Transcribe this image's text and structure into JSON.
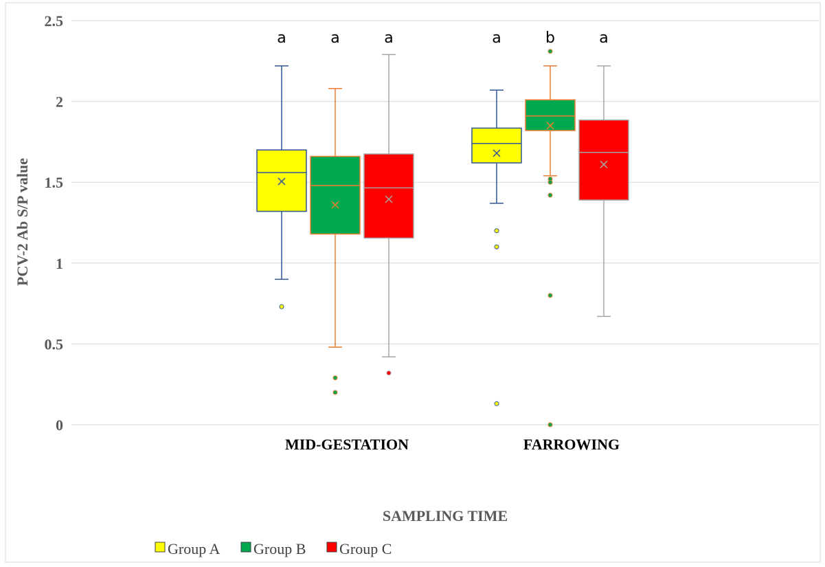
{
  "chart_data": {
    "type": "box",
    "title": "",
    "xlabel": "SAMPLING TIME",
    "ylabel": "PCV-2 Ab S/P value",
    "ylim": [
      0,
      2.5
    ],
    "yticks": [
      "0",
      "0.5",
      "1",
      "1.5",
      "2",
      "2.5"
    ],
    "grid": true,
    "legend_position": "bottom-left",
    "categories": [
      "MID-GESTATION",
      "FARROWING"
    ],
    "series": [
      {
        "name": "Group A",
        "color": "#FFFF00",
        "whisker_color": "#2F5597",
        "stats": [
          {
            "min": 0.9,
            "q1": 1.32,
            "median": 1.56,
            "q3": 1.7,
            "max": 2.22,
            "mean": 1.505,
            "outliers": [
              0.73
            ],
            "letter": "a"
          },
          {
            "min": 1.37,
            "q1": 1.62,
            "median": 1.74,
            "q3": 1.835,
            "max": 2.07,
            "mean": 1.68,
            "outliers": [
              1.2,
              1.1,
              0.13
            ],
            "letter": "a"
          }
        ]
      },
      {
        "name": "Group B",
        "color": "#00A84F",
        "whisker_color": "#ED7D31",
        "stats": [
          {
            "min": 0.48,
            "q1": 1.18,
            "median": 1.48,
            "q3": 1.66,
            "max": 2.08,
            "mean": 1.36,
            "outliers": [
              0.29,
              0.2
            ],
            "letter": "a"
          },
          {
            "min": 1.54,
            "q1": 1.82,
            "median": 1.91,
            "q3": 2.01,
            "max": 2.22,
            "mean": 1.85,
            "outliers": [
              2.31,
              1.52,
              1.5,
              1.42,
              0.8,
              0.0
            ],
            "letter": "b"
          }
        ]
      },
      {
        "name": "Group C",
        "color": "#FF0000",
        "whisker_color": "#A5A5A5",
        "stats": [
          {
            "min": 0.42,
            "q1": 1.155,
            "median": 1.465,
            "q3": 1.675,
            "max": 2.29,
            "mean": 1.395,
            "outliers": [
              0.32
            ],
            "letter": "a"
          },
          {
            "min": 0.67,
            "q1": 1.39,
            "median": 1.685,
            "q3": 1.885,
            "max": 2.22,
            "mean": 1.61,
            "outliers": [],
            "letter": "a"
          }
        ]
      }
    ]
  }
}
